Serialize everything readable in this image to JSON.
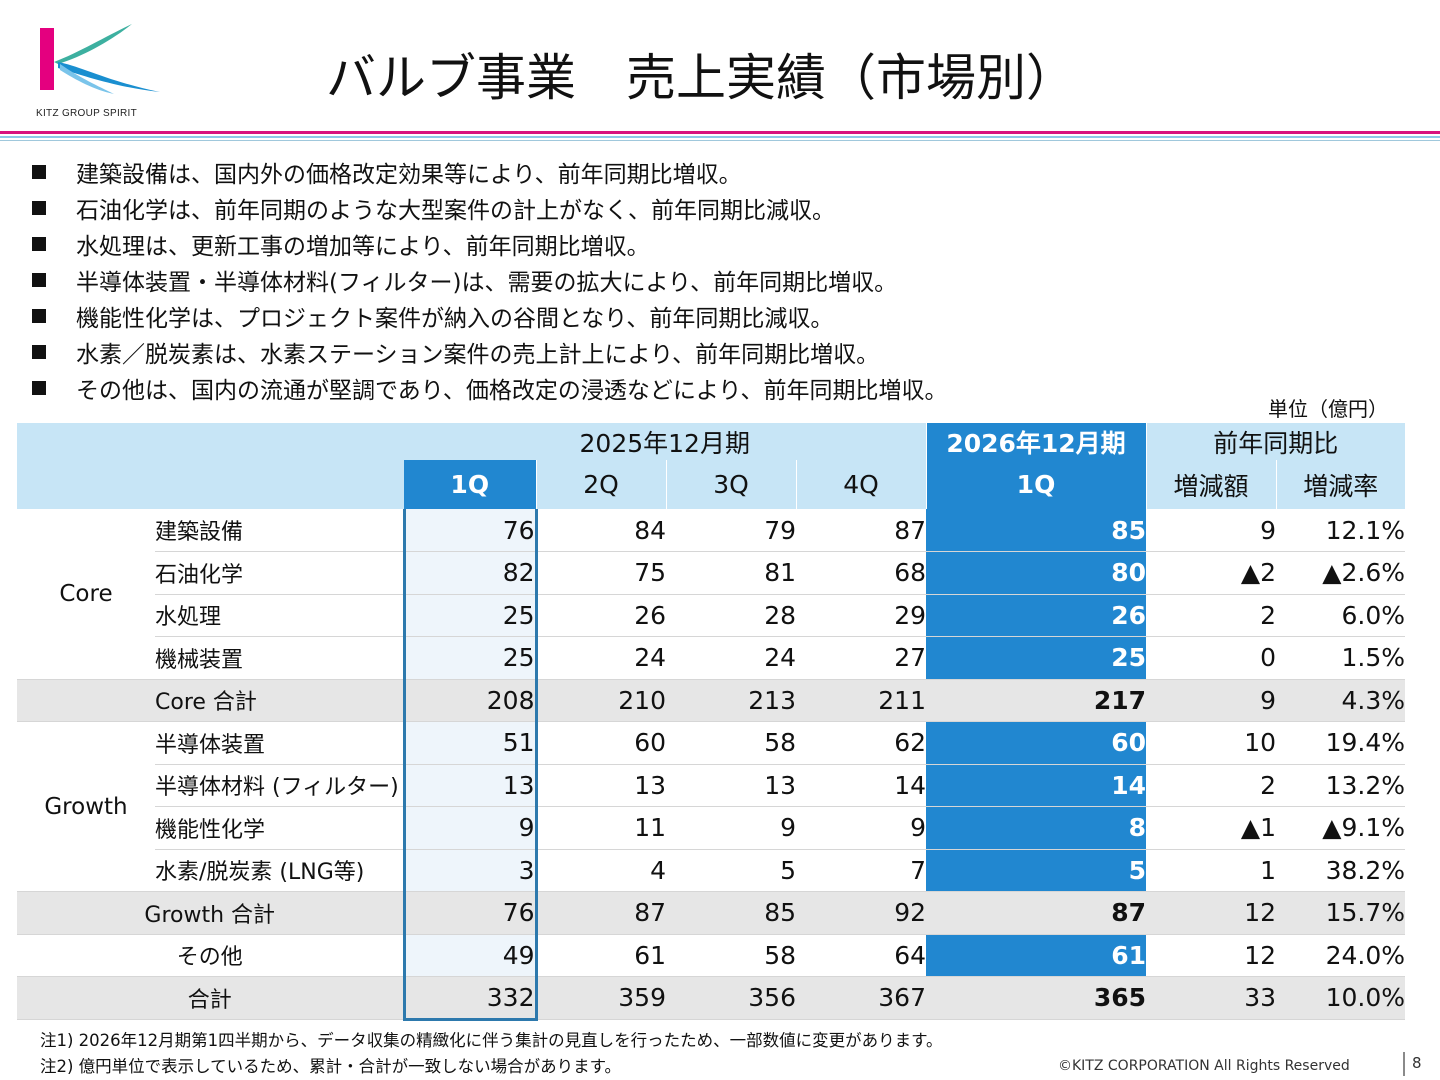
{
  "logo": {
    "text": "KITZ GROUP SPIRIT"
  },
  "title": "バルブ事業　売上実績（市場別）",
  "bullets": [
    "建築設備は、国内外の価格改定効果等により、前年同期比増収。",
    "石油化学は、前年同期のような大型案件の計上がなく、前年同期比減収。",
    "水処理は、更新工事の増加等により、前年同期比増収。",
    "半導体装置・半導体材料(フィルター)は、需要の拡大により、前年同期比増収。",
    "機能性化学は、プロジェクト案件が納入の谷間となり、前年同期比減収。",
    "水素／脱炭素は、水素ステーション案件の売上計上により、前年同期比増収。",
    "その他は、国内の流通が堅調であり、価格改定の浸透などにより、前年同期比増収。"
  ],
  "unit": "単位（億円）",
  "table": {
    "period_prev": "2025年12月期",
    "period_curr": "2026年12月期",
    "yoy": "前年同期比",
    "quarters": [
      "1Q",
      "2Q",
      "3Q",
      "4Q"
    ],
    "curr_quarter": "1Q",
    "diff_label": "増減額",
    "rate_label": "増減率",
    "groups": {
      "core": "Core",
      "growth": "Growth"
    },
    "rows": [
      {
        "label": "建築設備",
        "q": [
          "76",
          "84",
          "79",
          "87"
        ],
        "curr": "85",
        "diff": "9",
        "rate": "12.1%"
      },
      {
        "label": "石油化学",
        "q": [
          "82",
          "75",
          "81",
          "68"
        ],
        "curr": "80",
        "diff": "▲2",
        "rate": "▲2.6%"
      },
      {
        "label": "水処理",
        "q": [
          "25",
          "26",
          "28",
          "29"
        ],
        "curr": "26",
        "diff": "2",
        "rate": "6.0%"
      },
      {
        "label": "機械装置",
        "q": [
          "25",
          "24",
          "24",
          "27"
        ],
        "curr": "25",
        "diff": "0",
        "rate": "1.5%"
      },
      {
        "label": "Core 合計",
        "q": [
          "208",
          "210",
          "213",
          "211"
        ],
        "curr": "217",
        "diff": "9",
        "rate": "4.3%"
      },
      {
        "label": "半導体装置",
        "q": [
          "51",
          "60",
          "58",
          "62"
        ],
        "curr": "60",
        "diff": "10",
        "rate": "19.4%"
      },
      {
        "label": "半導体材料 (フィルター)",
        "q": [
          "13",
          "13",
          "13",
          "14"
        ],
        "curr": "14",
        "diff": "2",
        "rate": "13.2%"
      },
      {
        "label": "機能性化学",
        "q": [
          "9",
          "11",
          "9",
          "9"
        ],
        "curr": "8",
        "diff": "▲1",
        "rate": "▲9.1%"
      },
      {
        "label": "水素/脱炭素 (LNG等)",
        "q": [
          "3",
          "4",
          "5",
          "7"
        ],
        "curr": "5",
        "diff": "1",
        "rate": "38.2%"
      },
      {
        "label": "Growth 合計",
        "q": [
          "76",
          "87",
          "85",
          "92"
        ],
        "curr": "87",
        "diff": "12",
        "rate": "15.7%"
      },
      {
        "label": "その他",
        "q": [
          "49",
          "61",
          "58",
          "64"
        ],
        "curr": "61",
        "diff": "12",
        "rate": "24.0%"
      },
      {
        "label": "合計",
        "q": [
          "332",
          "359",
          "356",
          "367"
        ],
        "curr": "365",
        "diff": "33",
        "rate": "10.0%"
      }
    ]
  },
  "notes": [
    "注1) 2026年12月期第1四半期から、データ収集の精緻化に伴う集計の見直しを行ったため、一部数値に変更があります。",
    "注2) 億円単位で表示しているため、累計・合計が一致しない場合があります。"
  ],
  "colors": {
    "accent_blue": "#2187d0",
    "header_light": "#c7e5f6",
    "magenta": "#d8127f",
    "total_gray": "#e6e6e6"
  },
  "copyright": "©KITZ CORPORATION All Rights Reserved",
  "page_number": "8"
}
